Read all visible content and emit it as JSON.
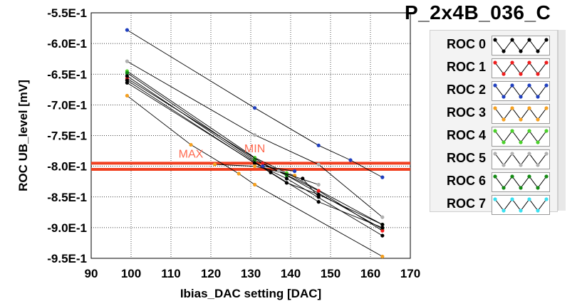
{
  "title": "P_2x4B_036_C",
  "colors": {
    "roc0": "#000000",
    "roc1": "#ee1c1c",
    "roc2": "#1f3fbf",
    "roc3": "#f5a020",
    "roc4": "#4ad02a",
    "roc5": "#b0b0b0",
    "roc6": "#128a12",
    "roc7": "#3ae0f0",
    "limit_line": "#f04020",
    "grid": "#000000"
  },
  "legend": [
    {
      "label": "ROC 0",
      "color": "#000000"
    },
    {
      "label": "ROC 1",
      "color": "#ee1c1c"
    },
    {
      "label": "ROC 2",
      "color": "#1f3fbf"
    },
    {
      "label": "ROC 3",
      "color": "#f5a020"
    },
    {
      "label": "ROC 4",
      "color": "#4ad02a"
    },
    {
      "label": "ROC 5",
      "color": "#b0b0b0"
    },
    {
      "label": "ROC 6",
      "color": "#128a12"
    },
    {
      "label": "ROC 7",
      "color": "#3ae0f0"
    }
  ],
  "chart_data": {
    "type": "line",
    "xlabel": "Ibias_DAC setting [DAC]",
    "ylabel": "ROC UB_level [mV]",
    "xlim": [
      90,
      170
    ],
    "ylim": [
      -0.95,
      -0.55
    ],
    "x_ticks": [
      90,
      100,
      110,
      120,
      130,
      140,
      150,
      160,
      170
    ],
    "x_tick_labels": [
      "90",
      "100",
      "110",
      "120",
      "130",
      "140",
      "150",
      "160",
      "170"
    ],
    "y_ticks": [
      -0.55,
      -0.6,
      -0.65,
      -0.7,
      -0.75,
      -0.8,
      -0.85,
      -0.9,
      -0.95
    ],
    "y_tick_labels": [
      "-5.5E-1",
      "-6.0E-1",
      "-6.5E-1",
      "-7.0E-1",
      "-7.5E-1",
      "-8.0E-1",
      "-8.5E-1",
      "-9.0E-1",
      "-9.5E-1"
    ],
    "grid": true,
    "annotations": [
      {
        "text": "MAX",
        "x": 115,
        "y": -0.786
      },
      {
        "text": "MIN",
        "x": 131,
        "y": -0.777
      }
    ],
    "reference_lines": [
      {
        "name": "MAX",
        "y": -0.795,
        "color": "#f04020"
      },
      {
        "name": "MIN",
        "y": -0.805,
        "color": "#f04020"
      }
    ],
    "series": [
      {
        "color": "#1f3fbf",
        "x": [
          99,
          131,
          147,
          155,
          163
        ],
        "y": [
          -0.578,
          -0.705,
          -0.766,
          -0.79,
          -0.818
        ]
      },
      {
        "color": "#b0b0b0",
        "x": [
          99,
          131,
          147,
          163
        ],
        "y": [
          -0.629,
          -0.749,
          -0.797,
          -0.883
        ]
      },
      {
        "color": "#4ad02a",
        "x": [
          99,
          131,
          139,
          163
        ],
        "y": [
          -0.645,
          -0.786,
          -0.811,
          -0.895
        ]
      },
      {
        "color": "#128a12",
        "x": [
          99,
          131,
          139,
          163
        ],
        "y": [
          -0.648,
          -0.79,
          -0.815,
          -0.902
        ]
      },
      {
        "color": "#ee1c1c",
        "x": [
          99,
          133,
          147,
          163
        ],
        "y": [
          -0.657,
          -0.795,
          -0.84,
          -0.905
        ]
      },
      {
        "color": "#000000",
        "x": [
          99,
          131,
          139,
          163
        ],
        "y": [
          -0.66,
          -0.795,
          -0.82,
          -0.913
        ]
      },
      {
        "color": "#000000",
        "x": [
          99,
          135,
          147,
          163
        ],
        "y": [
          -0.653,
          -0.81,
          -0.858,
          -0.9
        ]
      },
      {
        "color": "#000000",
        "x": [
          99,
          139,
          147,
          163
        ],
        "y": [
          -0.664,
          -0.827,
          -0.846,
          -0.895
        ]
      },
      {
        "color": "#f5a020",
        "x": [
          99,
          115,
          127,
          131,
          163
        ],
        "y": [
          -0.685,
          -0.765,
          -0.812,
          -0.83,
          -0.947
        ]
      },
      {
        "color": "#1f3fbf",
        "x": [
          133,
          141
        ],
        "y": [
          -0.8,
          -0.808
        ]
      },
      {
        "color": "#f5a020",
        "x": [
          121,
          131,
          141
        ],
        "y": [
          -0.797,
          -0.8,
          -0.815
        ]
      },
      {
        "color": "#b0b0b0",
        "x": [
          137,
          147
        ],
        "y": [
          -0.808,
          -0.83
        ]
      },
      {
        "color": "#000000",
        "x": [
          143,
          147
        ],
        "y": [
          -0.82,
          -0.85
        ]
      }
    ]
  }
}
